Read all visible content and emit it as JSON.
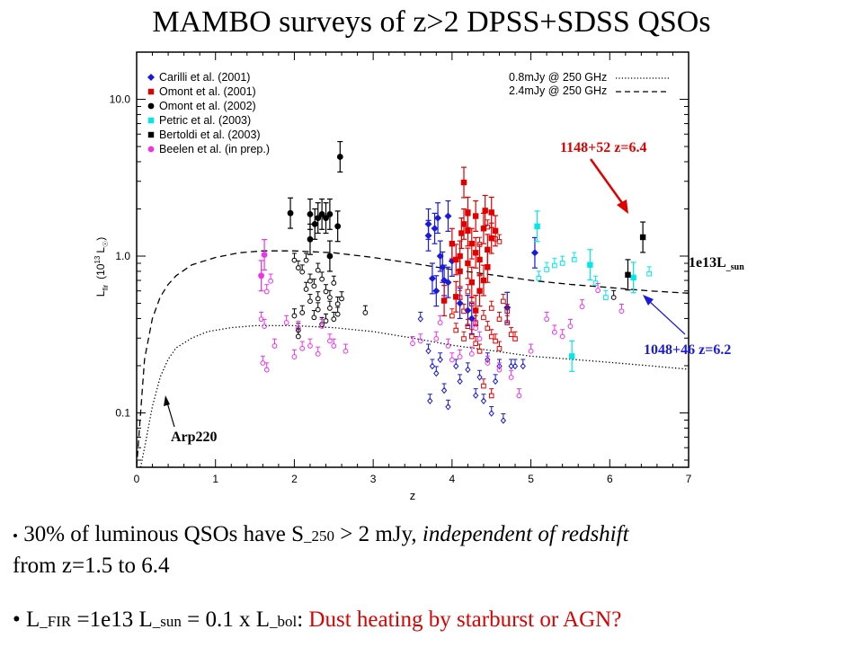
{
  "title": "MAMBO surveys of z>2 DPSS+SDSS QSOs",
  "chart_data": {
    "type": "scatter",
    "xlabel": "z",
    "ylabel_main": "L",
    "ylabel_sub": "fir",
    "ylabel_paren": "(10",
    "ylabel_exp": "13",
    "ylabel_unit": "L",
    "ylabel_unit_sub": "☉",
    "ylabel_close": ")",
    "y_scale": "log",
    "xlim": [
      0,
      7
    ],
    "ylim": [
      0.045,
      20
    ],
    "x_ticks": [
      "0",
      "1",
      "2",
      "3",
      "4",
      "5",
      "6",
      "7"
    ],
    "y_ticks": [
      {
        "v": 0.1,
        "label": "0.1"
      },
      {
        "v": 1.0,
        "label": "1.0"
      },
      {
        "v": 10.0,
        "label": "10.0"
      }
    ],
    "legend_position": "top-left",
    "series": [
      {
        "name": "Carilli et al. (2001)",
        "color": "#1a1adc",
        "marker": "diamond",
        "points": [
          [
            3.75,
            0.72
          ],
          [
            3.82,
            1.75
          ],
          [
            3.7,
            1.6
          ],
          [
            3.78,
            1.5
          ],
          [
            3.85,
            1.0
          ],
          [
            3.88,
            0.85
          ],
          [
            3.7,
            1.35
          ],
          [
            3.9,
            0.7
          ],
          [
            3.8,
            0.6
          ],
          [
            3.95,
            0.68
          ],
          [
            4.0,
            0.93
          ],
          [
            4.1,
            0.5
          ],
          [
            4.2,
            0.45
          ],
          [
            4.25,
            0.4
          ],
          [
            5.05,
            1.05
          ],
          [
            4.7,
            0.47
          ],
          [
            3.95,
            1.8
          ]
        ],
        "limits": [
          [
            3.7,
            0.25
          ],
          [
            3.75,
            0.2
          ],
          [
            3.8,
            0.18
          ],
          [
            3.85,
            0.22
          ],
          [
            3.72,
            0.12
          ],
          [
            3.9,
            0.14
          ],
          [
            3.95,
            0.11
          ],
          [
            4.05,
            0.2
          ],
          [
            4.1,
            0.16
          ],
          [
            4.2,
            0.19
          ],
          [
            4.3,
            0.13
          ],
          [
            4.35,
            0.17
          ],
          [
            4.4,
            0.12
          ],
          [
            4.45,
            0.22
          ],
          [
            4.5,
            0.1
          ],
          [
            4.55,
            0.16
          ],
          [
            4.6,
            0.2
          ],
          [
            4.65,
            0.09
          ],
          [
            4.75,
            0.2
          ],
          [
            4.8,
            0.2
          ],
          [
            4.9,
            0.2
          ],
          [
            3.6,
            0.4
          ]
        ]
      },
      {
        "name": "Omont et al. (2001)",
        "color": "#e00000",
        "marker": "square",
        "points": [
          [
            4.0,
            1.2
          ],
          [
            4.05,
            0.95
          ],
          [
            4.1,
            0.8
          ],
          [
            4.12,
            1.4
          ],
          [
            4.15,
            1.6
          ],
          [
            4.2,
            0.9
          ],
          [
            4.25,
            1.2
          ],
          [
            4.3,
            1.05
          ],
          [
            4.35,
            0.95
          ],
          [
            4.4,
            0.7
          ],
          [
            4.45,
            1.1
          ],
          [
            4.5,
            1.3
          ],
          [
            4.55,
            1.45
          ],
          [
            4.1,
            1.0
          ],
          [
            4.2,
            1.9
          ],
          [
            4.3,
            1.8
          ],
          [
            4.4,
            1.5
          ],
          [
            4.5,
            1.9
          ],
          [
            4.15,
            2.95
          ],
          [
            4.42,
            1.95
          ],
          [
            4.25,
            0.68
          ],
          [
            4.35,
            0.6
          ],
          [
            4.05,
            0.55
          ],
          [
            3.9,
            0.52
          ],
          [
            4.45,
            0.85
          ],
          [
            4.3,
            0.45
          ],
          [
            4.2,
            1.45
          ]
        ],
        "limits": [
          [
            4.1,
            0.55
          ],
          [
            4.15,
            0.45
          ],
          [
            4.2,
            0.36
          ],
          [
            4.25,
            0.31
          ],
          [
            4.3,
            0.28
          ],
          [
            4.35,
            0.25
          ],
          [
            4.4,
            0.41
          ],
          [
            4.45,
            0.35
          ],
          [
            4.5,
            0.31
          ],
          [
            4.55,
            0.29
          ],
          [
            4.6,
            0.26
          ],
          [
            4.65,
            0.52
          ],
          [
            4.7,
            0.38
          ],
          [
            4.75,
            0.32
          ],
          [
            4.0,
            0.42
          ],
          [
            4.05,
            0.34
          ],
          [
            4.5,
            0.47
          ],
          [
            4.6,
            0.4
          ],
          [
            4.4,
            0.15
          ],
          [
            4.5,
            0.13
          ],
          [
            4.15,
            0.3
          ],
          [
            4.3,
            0.38
          ],
          [
            4.7,
            0.45
          ],
          [
            4.8,
            0.3
          ],
          [
            4.35,
            1.2
          ],
          [
            4.45,
            1.55
          ],
          [
            4.55,
            1.3
          ],
          [
            4.2,
            0.6
          ],
          [
            4.25,
            0.5
          ],
          [
            4.6,
            1.25
          ]
        ]
      },
      {
        "name": "Omont et al. (2002)",
        "color": "#000000",
        "marker": "circle",
        "points": [
          [
            2.2,
            1.85
          ],
          [
            2.26,
            1.6
          ],
          [
            2.3,
            1.75
          ],
          [
            2.35,
            1.85
          ],
          [
            2.4,
            1.75
          ],
          [
            2.45,
            1.85
          ],
          [
            2.55,
            1.55
          ],
          [
            2.58,
            4.3
          ],
          [
            1.95,
            1.88
          ],
          [
            2.45,
            1.0
          ],
          [
            2.2,
            1.28
          ]
        ],
        "limits": [
          [
            2.0,
            0.95
          ],
          [
            2.05,
            0.85
          ],
          [
            2.1,
            0.8
          ],
          [
            2.15,
            0.95
          ],
          [
            2.2,
            0.7
          ],
          [
            2.25,
            0.65
          ],
          [
            2.3,
            0.82
          ],
          [
            2.35,
            0.72
          ],
          [
            2.4,
            0.6
          ],
          [
            2.45,
            0.55
          ],
          [
            2.5,
            0.68
          ],
          [
            2.55,
            0.5
          ],
          [
            2.2,
            0.52
          ],
          [
            2.3,
            0.46
          ],
          [
            2.1,
            0.44
          ],
          [
            2.25,
            0.41
          ],
          [
            2.4,
            0.39
          ],
          [
            2.05,
            0.34
          ],
          [
            2.35,
            0.37
          ],
          [
            2.55,
            0.43
          ],
          [
            2.6,
            0.54
          ],
          [
            2.0,
            0.42
          ],
          [
            2.15,
            0.62
          ],
          [
            2.45,
            0.47
          ],
          [
            2.5,
            0.4
          ],
          [
            2.9,
            0.44
          ],
          [
            2.05,
            0.31
          ],
          [
            2.3,
            0.54
          ]
        ]
      },
      {
        "name": "Petric et al. (2003)",
        "color": "#00e8e8",
        "marker": "square",
        "points": [
          [
            5.08,
            1.55
          ],
          [
            5.75,
            0.88
          ],
          [
            5.52,
            0.23
          ],
          [
            6.3,
            0.73
          ]
        ],
        "limits": [
          [
            5.1,
            0.73
          ],
          [
            5.2,
            0.83
          ],
          [
            5.3,
            0.88
          ],
          [
            5.4,
            0.91
          ],
          [
            5.55,
            0.96
          ],
          [
            5.82,
            0.68
          ],
          [
            6.5,
            0.78
          ],
          [
            5.95,
            0.55
          ]
        ]
      },
      {
        "name": "Bertoldi et al. (2003)",
        "color": "#000000",
        "marker": "square",
        "points": [
          [
            6.42,
            1.32
          ],
          [
            6.23,
            0.76
          ]
        ],
        "limits": [
          [
            6.05,
            0.55
          ]
        ]
      },
      {
        "name": "Beelen et al. (in prep.)",
        "color": "#ee33ee",
        "marker": "circle",
        "points": [
          [
            1.58,
            0.75
          ],
          [
            1.62,
            1.02
          ]
        ],
        "limits": [
          [
            1.58,
            0.4
          ],
          [
            1.62,
            0.36
          ],
          [
            1.65,
            0.6
          ],
          [
            1.7,
            0.7
          ],
          [
            1.6,
            0.21
          ],
          [
            1.65,
            0.19
          ],
          [
            1.75,
            0.27
          ],
          [
            1.9,
            0.38
          ],
          [
            2.0,
            0.23
          ],
          [
            2.05,
            0.35
          ],
          [
            2.1,
            0.26
          ],
          [
            2.2,
            0.27
          ],
          [
            2.3,
            0.24
          ],
          [
            2.35,
            0.36
          ],
          [
            2.45,
            0.29
          ],
          [
            2.5,
            0.27
          ],
          [
            2.65,
            0.25
          ],
          [
            3.5,
            0.28
          ],
          [
            3.6,
            0.29
          ],
          [
            3.8,
            0.3
          ],
          [
            3.85,
            0.38
          ],
          [
            3.95,
            0.27
          ],
          [
            4.0,
            0.22
          ],
          [
            4.1,
            0.23
          ],
          [
            4.25,
            0.24
          ],
          [
            4.35,
            0.3
          ],
          [
            4.45,
            0.21
          ],
          [
            4.6,
            0.19
          ],
          [
            4.75,
            0.17
          ],
          [
            4.85,
            0.13
          ],
          [
            5.0,
            0.25
          ],
          [
            5.2,
            0.4
          ],
          [
            5.3,
            0.33
          ],
          [
            5.4,
            0.31
          ],
          [
            5.5,
            0.36
          ],
          [
            5.65,
            0.48
          ],
          [
            6.15,
            0.45
          ],
          [
            5.85,
            0.61
          ],
          [
            4.3,
            0.35
          ]
        ]
      }
    ],
    "curves": [
      {
        "name": "0.8mJy @ 250 GHz",
        "style": "dotted",
        "points": [
          [
            0.05,
            0.045
          ],
          [
            0.1,
            0.06
          ],
          [
            0.2,
            0.11
          ],
          [
            0.3,
            0.17
          ],
          [
            0.4,
            0.22
          ],
          [
            0.5,
            0.26
          ],
          [
            0.7,
            0.3
          ],
          [
            0.9,
            0.33
          ],
          [
            1.2,
            0.35
          ],
          [
            1.5,
            0.36
          ],
          [
            2,
            0.36
          ],
          [
            2.5,
            0.35
          ],
          [
            3,
            0.33
          ],
          [
            3.5,
            0.3
          ],
          [
            4,
            0.27
          ],
          [
            4.5,
            0.25
          ],
          [
            5,
            0.23
          ],
          [
            5.5,
            0.22
          ],
          [
            6,
            0.21
          ],
          [
            6.5,
            0.2
          ],
          [
            7,
            0.19
          ]
        ]
      },
      {
        "name": "2.4mJy @ 250 GHz",
        "style": "dashed",
        "points": [
          [
            0.0,
            0.045
          ],
          [
            0.05,
            0.1
          ],
          [
            0.1,
            0.22
          ],
          [
            0.2,
            0.4
          ],
          [
            0.3,
            0.55
          ],
          [
            0.4,
            0.66
          ],
          [
            0.5,
            0.75
          ],
          [
            0.7,
            0.88
          ],
          [
            1.0,
            0.98
          ],
          [
            1.3,
            1.05
          ],
          [
            1.6,
            1.08
          ],
          [
            2.0,
            1.08
          ],
          [
            2.5,
            1.05
          ],
          [
            3.0,
            0.98
          ],
          [
            3.5,
            0.9
          ],
          [
            4.0,
            0.82
          ],
          [
            4.5,
            0.76
          ],
          [
            5.0,
            0.7
          ],
          [
            5.5,
            0.66
          ],
          [
            6.0,
            0.63
          ],
          [
            6.5,
            0.6
          ],
          [
            7.0,
            0.58
          ]
        ]
      }
    ],
    "annotations": [
      {
        "label": "1148+52 z=6.4",
        "color": "#e00000"
      },
      {
        "label_main": "1e13L",
        "label_sub": "_sun",
        "color": "#000000"
      },
      {
        "label": "1048+46 z=6.2",
        "color": "#1a1adc"
      },
      {
        "label": "Arp220",
        "color": "#000000"
      }
    ]
  },
  "bullets": {
    "b1_pre": "30% of luminous QSOs have S",
    "b1_sub": "_250",
    "b1_mid": " > 2 mJy, ",
    "b1_italic": "independent of redshift",
    "b1_end": "from z=1.5 to 6.4",
    "b2_a": "L",
    "b2_a_sub": "_FIR",
    "b2_b": " =1e13 L",
    "b2_b_sub": "_sun",
    "b2_c": " = 0.1 x L",
    "b2_c_sub": "_bol",
    "b2_d": ":  ",
    "b2_red": "Dust heating by starburst or AGN?"
  }
}
